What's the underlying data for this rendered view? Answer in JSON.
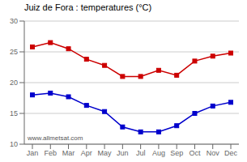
{
  "chart_data": {
    "type": "line",
    "title": "Juiz de Fora : temperatures (°C)",
    "categories": [
      "Jan",
      "Feb",
      "Mar",
      "Apr",
      "May",
      "Jun",
      "Jul",
      "Aug",
      "Sep",
      "Oct",
      "Nov",
      "Dec"
    ],
    "series": [
      {
        "color": "#cc0000",
        "marker": "square",
        "values": [
          25.8,
          26.5,
          25.5,
          23.8,
          22.8,
          21.0,
          21.0,
          22.0,
          21.2,
          23.5,
          24.3,
          24.8
        ]
      },
      {
        "color": "#0000cc",
        "marker": "square",
        "values": [
          18.0,
          18.3,
          17.7,
          16.3,
          15.3,
          12.8,
          12.0,
          12.0,
          13.0,
          15.0,
          16.2,
          16.8
        ]
      }
    ],
    "ylim": [
      10,
      30
    ],
    "yticks": [
      10,
      15,
      20,
      25,
      30
    ],
    "grid": true,
    "annotations": [
      "www.allmetsat.com"
    ]
  }
}
